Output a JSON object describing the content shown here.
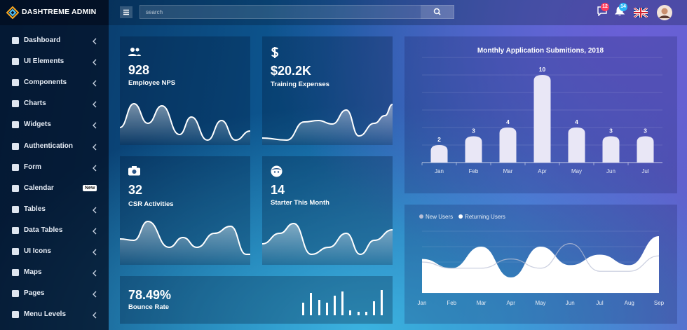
{
  "brand": "DASHTREME ADMIN",
  "search_placeholder": "search",
  "notifications": {
    "messages": 12,
    "alerts": 14
  },
  "sidebar": [
    {
      "label": "Dashboard"
    },
    {
      "label": "UI Elements"
    },
    {
      "label": "Components"
    },
    {
      "label": "Charts"
    },
    {
      "label": "Widgets"
    },
    {
      "label": "Authentication"
    },
    {
      "label": "Form"
    },
    {
      "label": "Calendar",
      "tag": "New"
    },
    {
      "label": "Tables"
    },
    {
      "label": "Data Tables"
    },
    {
      "label": "UI Icons"
    },
    {
      "label": "Maps"
    },
    {
      "label": "Pages"
    },
    {
      "label": "Menu Levels"
    }
  ],
  "cards": [
    {
      "value": 928,
      "label": "Employee NPS"
    },
    {
      "value": "$20.2K",
      "label": "Training Expenses"
    },
    {
      "value": 32,
      "label": "CSR Activities"
    },
    {
      "value": 14,
      "label": "Starter This Month"
    }
  ],
  "bounce": {
    "value": "78.49%",
    "label": "Bounce Rate"
  },
  "bar_chart": {
    "type": "bar",
    "title": "Monthly Application Submitions, 2018",
    "categories": [
      "Jan",
      "Feb",
      "Mar",
      "Apr",
      "May",
      "Jun",
      "Jul"
    ],
    "values": [
      2,
      3,
      4,
      10,
      4,
      3,
      3
    ],
    "color": "#e9e7f6",
    "ylim": [
      0,
      12
    ]
  },
  "area_chart": {
    "type": "area",
    "categories": [
      "Jan",
      "Feb",
      "Mar",
      "Apr",
      "May",
      "Jun",
      "Jul",
      "Aug",
      "Sep"
    ],
    "ylim": [
      0,
      100
    ],
    "series": [
      {
        "name": "New Users",
        "color": "#b9bfd6",
        "values": [
          50,
          40,
          40,
          55,
          40,
          80,
          35,
          35,
          60
        ]
      },
      {
        "name": "Returning Users",
        "color": "#ffffff",
        "values": [
          55,
          40,
          75,
          25,
          75,
          45,
          62,
          45,
          92
        ]
      }
    ]
  }
}
